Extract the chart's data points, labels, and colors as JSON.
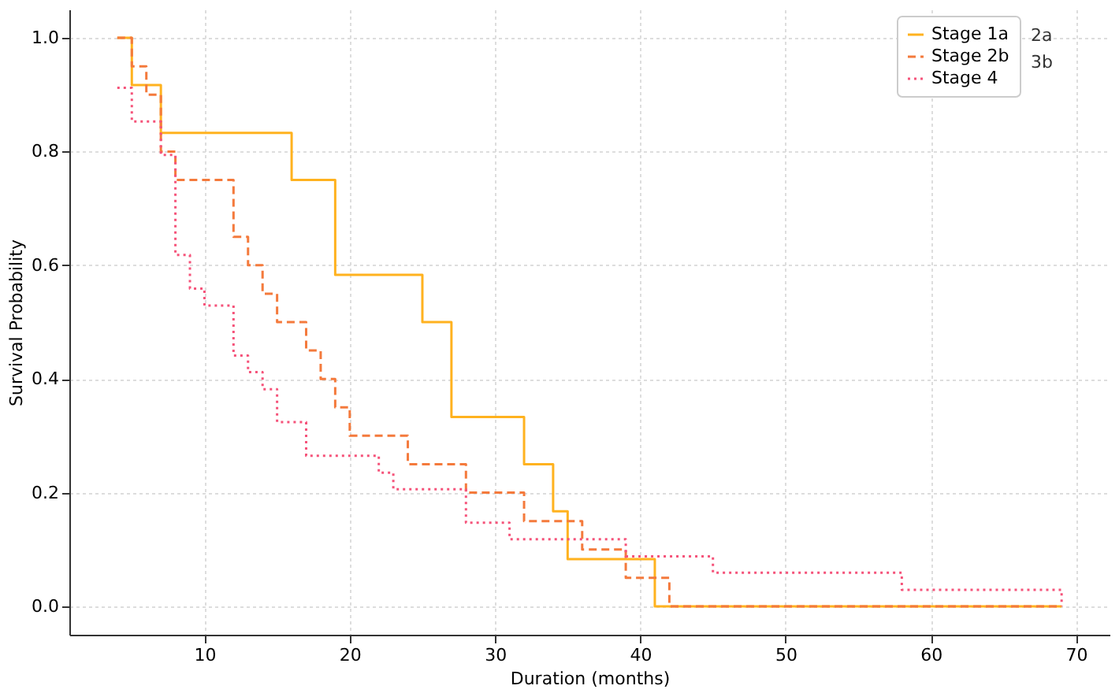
{
  "chart_data": {
    "type": "step",
    "xlabel": "Duration (months)",
    "ylabel": "Survival Probability",
    "xlim": [
      0.7,
      72.3
    ],
    "xticks": [
      10,
      20,
      30,
      40,
      50,
      60,
      70
    ],
    "ylim": [
      -0.05,
      1.05
    ],
    "yticks": [
      {
        "value": 0,
        "label": "0.0"
      },
      {
        "value": 0.2,
        "label": "0.2"
      },
      {
        "value": 0.4,
        "label": "0.4"
      },
      {
        "value": 0.6,
        "label": "0.6"
      },
      {
        "value": 0.8,
        "label": "0.8"
      },
      {
        "value": 1,
        "label": "1.0"
      }
    ],
    "grid": true,
    "legend": "top right",
    "annotations": [
      "2a",
      "3b"
    ],
    "series": [
      {
        "name": "Stage 1a",
        "color": "#ffb21f",
        "line_style": "solid",
        "x": [
          4,
          5,
          7,
          16,
          19,
          25,
          27,
          32,
          34,
          35,
          41,
          69
        ],
        "values": [
          1.0,
          0.917,
          0.833,
          0.75,
          0.583,
          0.5,
          0.333,
          0.25,
          0.167,
          0.083,
          0,
          0
        ]
      },
      {
        "name": "Stage 2b",
        "color": "#f47a3c",
        "line_style": "dashed",
        "x": [
          4,
          5,
          6,
          7,
          8,
          12,
          13,
          14,
          15,
          17,
          18,
          19,
          20,
          24,
          28,
          32,
          36,
          39,
          42,
          69
        ],
        "values": [
          1.0,
          0.95,
          0.9,
          0.8,
          0.75,
          0.65,
          0.6,
          0.55,
          0.5,
          0.45,
          0.4,
          0.35,
          0.3,
          0.25,
          0.2,
          0.15,
          0.1,
          0.05,
          0,
          0
        ]
      },
      {
        "name": "Stage 4",
        "color": "#f5537a",
        "line_style": "dotted",
        "x": [
          4,
          5,
          7,
          8,
          9,
          10,
          12,
          13,
          14,
          15,
          17,
          22,
          23,
          28,
          31,
          39,
          45,
          58,
          69
        ],
        "values": [
          0.912,
          0.853,
          0.794,
          0.618,
          0.559,
          0.529,
          0.441,
          0.412,
          0.382,
          0.324,
          0.265,
          0.235,
          0.206,
          0.147,
          0.118,
          0.088,
          0.059,
          0.029,
          0
        ]
      }
    ]
  }
}
